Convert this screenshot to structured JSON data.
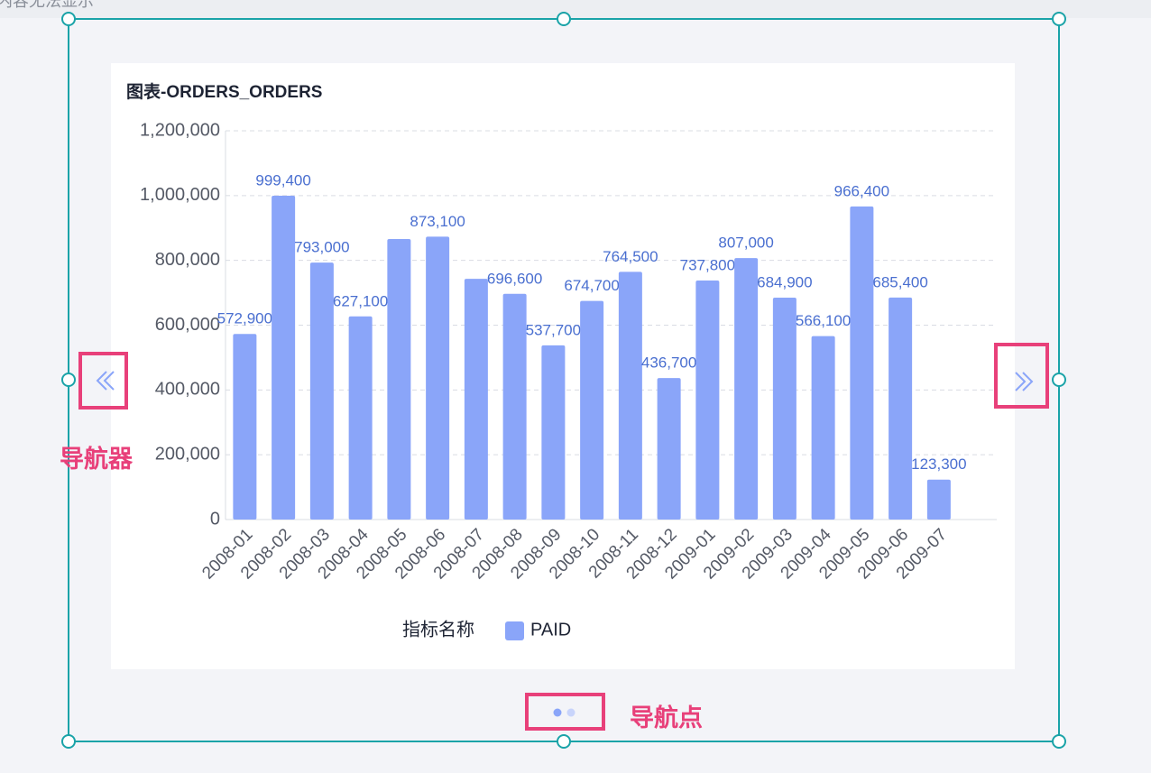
{
  "top_text": "内容无法显示",
  "annotations": {
    "navigator": "导航器",
    "nav_dots": "导航点"
  },
  "chart_data": {
    "type": "bar",
    "title": "图表-ORDERS_ORDERS",
    "categories": [
      "2008-01",
      "2008-02",
      "2008-03",
      "2008-04",
      "2008-05",
      "2008-06",
      "2008-07",
      "2008-08",
      "2008-09",
      "2008-10",
      "2008-11",
      "2008-12",
      "2009-01",
      "2009-02",
      "2009-03",
      "2009-04",
      "2009-05",
      "2009-06",
      "2009-07"
    ],
    "series": [
      {
        "name": "PAID",
        "color": "#8aa5f9",
        "values": [
          572900,
          999400,
          793000,
          627100,
          866000,
          873100,
          743000,
          696600,
          537700,
          674700,
          764500,
          436700,
          737800,
          807000,
          684900,
          566100,
          966400,
          685400,
          123300
        ],
        "value_labels": [
          "572,900",
          "999,400",
          "793,000",
          "627,100",
          null,
          "873,100",
          null,
          "696,600",
          "537,700",
          "674,700",
          "764,500",
          "436,700",
          "737,800",
          "807,000",
          "684,900",
          "566,100",
          "966,400",
          "685,400",
          "123,300"
        ]
      }
    ],
    "legend_title": "指标名称",
    "ylim": [
      0,
      1200000
    ],
    "yticks": [
      0,
      {
        "value": 200000,
        "label": "200,000"
      },
      {
        "value": 400000,
        "label": "400,000"
      },
      {
        "value": 600000,
        "label": "600,000"
      },
      {
        "value": 800000,
        "label": "800,000"
      },
      {
        "value": 1000000,
        "label": "1,000,000"
      },
      {
        "value": 1200000,
        "label": "1,200,000"
      }
    ],
    "grid": true
  }
}
